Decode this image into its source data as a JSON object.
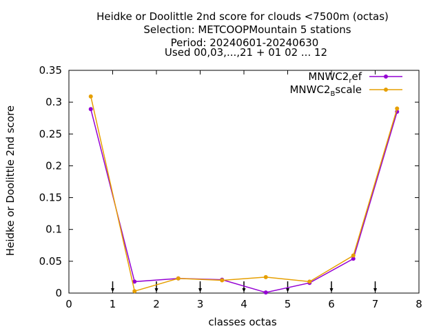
{
  "chart_data": {
    "type": "line",
    "title_lines": [
      "Heidke or Doolittle 2nd score  for clouds <7500m (octas)",
      "Selection: METCOOPMountain      5 stations",
      "Period: 20240601-20240630",
      "Used 00,03,...,21 + 01 02 ... 12"
    ],
    "xlabel": "classes octas",
    "ylabel": "Heidke or Doolittle 2nd score",
    "xlim": [
      0,
      8
    ],
    "ylim": [
      0,
      0.35
    ],
    "x_ticks": [
      "0",
      "1",
      "2",
      "3",
      "4",
      "5",
      "6",
      "7",
      "8"
    ],
    "y_ticks": [
      "0",
      "0.05",
      "0.1",
      "0.15",
      "0.2",
      "0.25",
      "0.3",
      "0.35"
    ],
    "x": [
      0.5,
      1.5,
      2.5,
      3.5,
      4.5,
      5.5,
      6.5,
      7.5
    ],
    "series": [
      {
        "name_base": "MNWC2",
        "name_sub": "r",
        "name_rest": "ef",
        "color": "#9400d3",
        "values": [
          0.289,
          0.018,
          0.023,
          0.021,
          0.001,
          0.016,
          0.054,
          0.285
        ]
      },
      {
        "name_base": "MNWC2",
        "name_sub": "B",
        "name_rest": "scale",
        "color": "#e69f00",
        "values": [
          0.309,
          0.003,
          0.023,
          0.02,
          0.025,
          0.018,
          0.059,
          0.29
        ]
      }
    ],
    "markers_x": [
      1,
      2,
      3,
      4,
      5,
      6,
      7
    ],
    "legend_position": "top-right",
    "grid": false
  }
}
